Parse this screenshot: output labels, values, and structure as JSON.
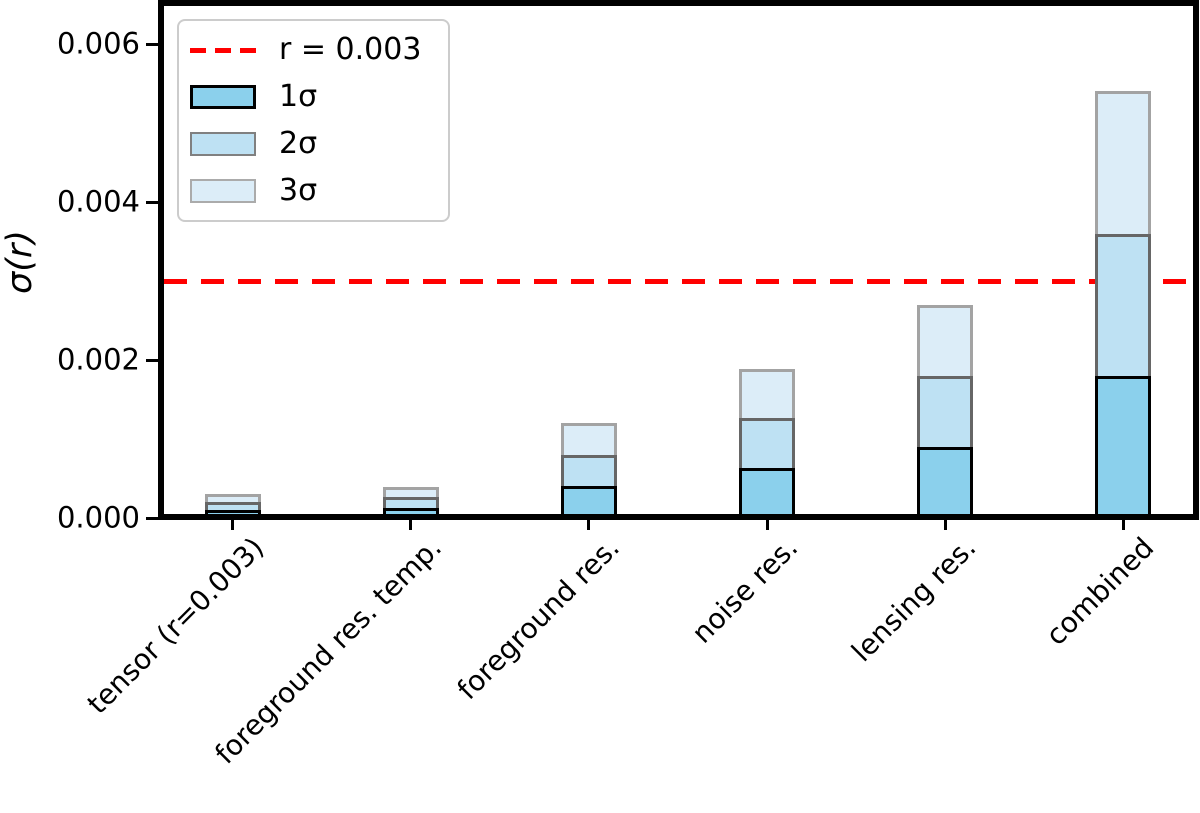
{
  "figure": {
    "background": "#FFFFFF",
    "axis_color": "#000000"
  },
  "y_axis": {
    "label": "σ(r)",
    "tick_labels": [
      "0.000",
      "0.002",
      "0.004",
      "0.006"
    ],
    "tick_values": [
      0.0,
      0.002,
      0.004,
      0.006
    ]
  },
  "legend": {
    "entries": [
      {
        "label": "r = 0.003",
        "swatch": "dashed-line",
        "color": "#FF0000"
      },
      {
        "label": "1σ",
        "swatch": "patch",
        "fill": "#8BD0EC",
        "edge": "#000000",
        "edge_width": 3
      },
      {
        "label": "2σ",
        "swatch": "patch",
        "fill": "#BEE1F3",
        "edge": "#808080",
        "edge_width": 2
      },
      {
        "label": "3σ",
        "swatch": "patch",
        "fill": "#DCEDF8",
        "edge": "#ABABAB",
        "edge_width": 2
      }
    ]
  },
  "chart_data": {
    "type": "bar",
    "subtype": "overlaid-confidence-levels",
    "title": "",
    "xlabel": "",
    "ylabel": "σ(r)",
    "ylim": [
      0,
      0.0065
    ],
    "grid": false,
    "legend_position": "upper left",
    "categories": [
      "tensor (r=0.003)",
      "foreground res. temp.",
      "foreground res.",
      "noise res.",
      "lensing res.",
      "combined"
    ],
    "sigma_values": [
      0.0001,
      0.00013,
      0.0004,
      0.00063,
      0.0009,
      0.0018
    ],
    "series": [
      {
        "name": "1σ",
        "values": [
          0.0001,
          0.00013,
          0.0004,
          0.00063,
          0.0009,
          0.0018
        ],
        "fill": "#8BD0EC",
        "edge": "#000000"
      },
      {
        "name": "2σ",
        "values": [
          0.0002,
          0.00026,
          0.0008,
          0.00126,
          0.0018,
          0.0036
        ],
        "fill": "#BEE1F3",
        "edge": "#666666"
      },
      {
        "name": "3σ",
        "values": [
          0.0003,
          0.00039,
          0.0012,
          0.00189,
          0.0027,
          0.0054
        ],
        "fill": "#DCEDF8",
        "edge": "#A3A3A3"
      }
    ],
    "reference_line": {
      "label": "r = 0.003",
      "value": 0.003,
      "color": "#FF0000",
      "style": "dashed"
    }
  }
}
